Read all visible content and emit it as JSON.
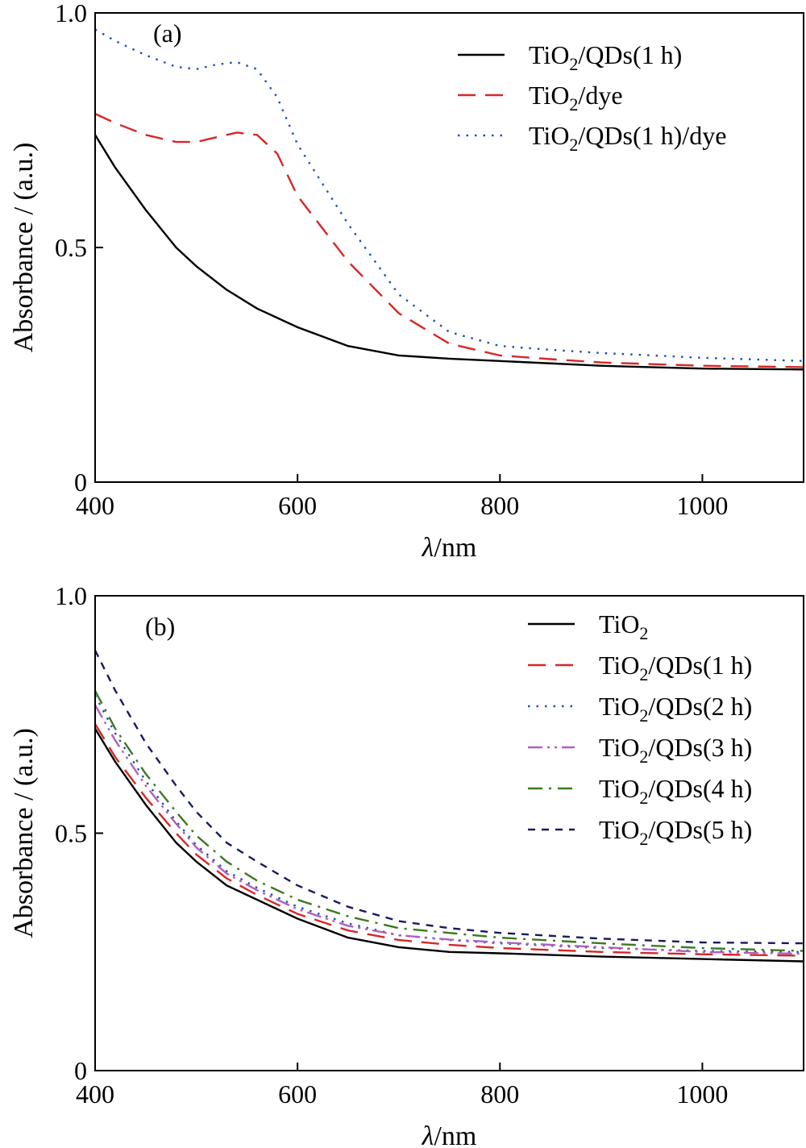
{
  "chart_data": [
    {
      "type": "line",
      "panel_label": "(a)",
      "xlabel_symbol": "λ",
      "xlabel_unit": "/nm",
      "ylabel": "Absorbance / (a.u.)",
      "xlim": [
        400,
        1100
      ],
      "ylim": [
        0,
        1.0
      ],
      "x_ticks": [
        400,
        600,
        800,
        1000
      ],
      "x_tick_labels": [
        "400",
        "600",
        "800",
        "1000"
      ],
      "y_ticks": [
        0,
        0.5,
        1.0
      ],
      "y_tick_labels": [
        "0",
        "0.5",
        "1.0"
      ],
      "grid": false,
      "legend_position": "top-right",
      "series": [
        {
          "name": "TiO2/QDs(1 h)",
          "name_parts": [
            "TiO",
            "2",
            "/QDs(1 h)"
          ],
          "color": "#000000",
          "dash": "solid",
          "x": [
            400,
            420,
            450,
            480,
            500,
            530,
            560,
            600,
            650,
            700,
            750,
            800,
            900,
            1000,
            1100
          ],
          "y": [
            0.74,
            0.67,
            0.58,
            0.5,
            0.46,
            0.41,
            0.37,
            0.33,
            0.29,
            0.27,
            0.263,
            0.258,
            0.248,
            0.242,
            0.24
          ]
        },
        {
          "name": "TiO2/dye",
          "name_parts": [
            "TiO",
            "2",
            "/dye"
          ],
          "color": "#d62728",
          "dash": "long-dash",
          "x": [
            400,
            420,
            450,
            480,
            500,
            520,
            540,
            560,
            580,
            600,
            650,
            700,
            750,
            800,
            850,
            900,
            1000,
            1100
          ],
          "y": [
            0.785,
            0.765,
            0.74,
            0.725,
            0.725,
            0.735,
            0.745,
            0.74,
            0.7,
            0.61,
            0.47,
            0.36,
            0.295,
            0.27,
            0.262,
            0.255,
            0.248,
            0.245
          ]
        },
        {
          "name": "TiO2/QDs(1 h)/dye",
          "name_parts": [
            "TiO",
            "2",
            "/QDs(1 h)/dye"
          ],
          "color": "#1f4fb4",
          "dash": "dotted",
          "x": [
            400,
            420,
            450,
            480,
            500,
            520,
            540,
            560,
            580,
            600,
            650,
            700,
            750,
            800,
            850,
            900,
            1000,
            1100
          ],
          "y": [
            0.965,
            0.94,
            0.91,
            0.885,
            0.88,
            0.89,
            0.895,
            0.88,
            0.82,
            0.72,
            0.55,
            0.4,
            0.32,
            0.29,
            0.282,
            0.275,
            0.265,
            0.258
          ]
        }
      ]
    },
    {
      "type": "line",
      "panel_label": "(b)",
      "xlabel_symbol": "λ",
      "xlabel_unit": "/nm",
      "ylabel": "Absorbance / (a.u.)",
      "xlim": [
        400,
        1100
      ],
      "ylim": [
        0,
        1.0
      ],
      "x_ticks": [
        400,
        600,
        800,
        1000
      ],
      "x_tick_labels": [
        "400",
        "600",
        "800",
        "1000"
      ],
      "y_ticks": [
        0,
        0.5,
        1.0
      ],
      "y_tick_labels": [
        "0",
        "0.5",
        "1.0"
      ],
      "grid": false,
      "legend_position": "top-right",
      "series": [
        {
          "name": "TiO2",
          "name_parts": [
            "TiO",
            "2",
            ""
          ],
          "color": "#000000",
          "dash": "solid",
          "x": [
            400,
            420,
            450,
            480,
            500,
            530,
            560,
            600,
            650,
            700,
            750,
            800,
            900,
            1000,
            1100
          ],
          "y": [
            0.72,
            0.65,
            0.56,
            0.48,
            0.44,
            0.39,
            0.36,
            0.32,
            0.28,
            0.26,
            0.25,
            0.247,
            0.24,
            0.235,
            0.23
          ]
        },
        {
          "name": "TiO2/QDs(1 h)",
          "name_parts": [
            "TiO",
            "2",
            "/QDs(1 h)"
          ],
          "color": "#d62728",
          "dash": "long-dash",
          "x": [
            400,
            420,
            450,
            480,
            500,
            530,
            560,
            600,
            650,
            700,
            750,
            800,
            900,
            1000,
            1100
          ],
          "y": [
            0.73,
            0.66,
            0.575,
            0.5,
            0.455,
            0.405,
            0.37,
            0.33,
            0.295,
            0.275,
            0.265,
            0.258,
            0.25,
            0.245,
            0.242
          ]
        },
        {
          "name": "TiO2/QDs(2 h)",
          "name_parts": [
            "TiO",
            "2",
            "/QDs(2 h)"
          ],
          "color": "#1f4fb4",
          "dash": "dotted",
          "x": [
            400,
            420,
            450,
            480,
            500,
            530,
            560,
            600,
            650,
            700,
            750,
            800,
            900,
            1000,
            1100
          ],
          "y": [
            0.79,
            0.71,
            0.61,
            0.525,
            0.475,
            0.42,
            0.385,
            0.345,
            0.31,
            0.285,
            0.275,
            0.268,
            0.258,
            0.252,
            0.25
          ]
        },
        {
          "name": "TiO2/QDs(3 h)",
          "name_parts": [
            "TiO",
            "2",
            "/QDs(3 h)"
          ],
          "color": "#b060c0",
          "dash": "dash-dot-dot",
          "x": [
            400,
            420,
            450,
            480,
            500,
            530,
            560,
            600,
            650,
            700,
            750,
            800,
            900,
            1000,
            1100
          ],
          "y": [
            0.77,
            0.695,
            0.6,
            0.52,
            0.47,
            0.415,
            0.38,
            0.34,
            0.305,
            0.285,
            0.276,
            0.27,
            0.26,
            0.25,
            0.246
          ]
        },
        {
          "name": "TiO2/QDs(4 h)",
          "name_parts": [
            "TiO",
            "2",
            "/QDs(4 h)"
          ],
          "color": "#3d7a1f",
          "dash": "dash-dot",
          "x": [
            400,
            420,
            450,
            480,
            500,
            530,
            560,
            600,
            650,
            700,
            750,
            800,
            900,
            1000,
            1100
          ],
          "y": [
            0.8,
            0.72,
            0.625,
            0.545,
            0.495,
            0.44,
            0.4,
            0.36,
            0.325,
            0.3,
            0.29,
            0.28,
            0.268,
            0.258,
            0.252
          ]
        },
        {
          "name": "TiO2/QDs(5 h)",
          "name_parts": [
            "TiO",
            "2",
            "/QDs(5 h)"
          ],
          "color": "#1a1a5e",
          "dash": "short-dash",
          "x": [
            400,
            420,
            450,
            480,
            500,
            530,
            560,
            600,
            650,
            700,
            750,
            800,
            900,
            1000,
            1100
          ],
          "y": [
            0.885,
            0.8,
            0.69,
            0.6,
            0.545,
            0.48,
            0.44,
            0.39,
            0.345,
            0.315,
            0.3,
            0.29,
            0.278,
            0.27,
            0.268
          ]
        }
      ]
    }
  ]
}
